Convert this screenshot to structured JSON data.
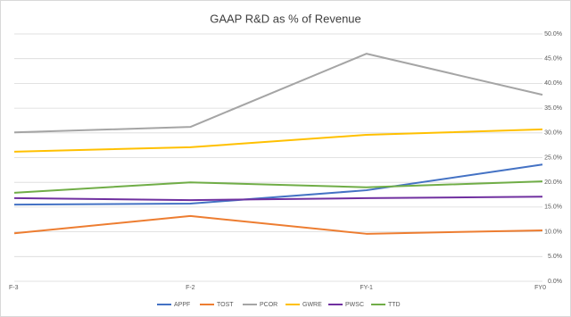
{
  "chart_data": {
    "type": "line",
    "title": "GAAP R&D as % of Revenue",
    "categories": [
      "F-3",
      "F-2",
      "FY-1",
      "FY0"
    ],
    "series": [
      {
        "name": "APPF",
        "color": "#4472c4",
        "values": [
          15.5,
          15.7,
          18.4,
          23.6
        ]
      },
      {
        "name": "TOST",
        "color": "#ed7d31",
        "values": [
          9.7,
          13.2,
          9.6,
          10.3
        ]
      },
      {
        "name": "PCOR",
        "color": "#a5a5a5",
        "values": [
          30.1,
          31.2,
          46.0,
          37.7
        ]
      },
      {
        "name": "GWRE",
        "color": "#ffc000",
        "values": [
          26.2,
          27.1,
          29.6,
          30.7
        ]
      },
      {
        "name": "PWSC",
        "color": "#7030a0",
        "values": [
          16.8,
          16.4,
          16.8,
          17.1
        ]
      },
      {
        "name": "TTD",
        "color": "#70ad47",
        "values": [
          17.9,
          20.0,
          19.0,
          20.2
        ]
      }
    ],
    "ylim": [
      0,
      50
    ],
    "yticks": [
      {
        "value": 0,
        "label": "0.0%"
      },
      {
        "value": 5,
        "label": "5.0%"
      },
      {
        "value": 10,
        "label": "10.0%"
      },
      {
        "value": 15,
        "label": "15.0%"
      },
      {
        "value": 20,
        "label": "20.0%"
      },
      {
        "value": 25,
        "label": "25.0%"
      },
      {
        "value": 30,
        "label": "30.0%"
      },
      {
        "value": 35,
        "label": "35.0%"
      },
      {
        "value": 40,
        "label": "40.0%"
      },
      {
        "value": 45,
        "label": "45.0%"
      },
      {
        "value": 50,
        "label": "50.0%"
      }
    ],
    "grid": true,
    "legend": "bottom"
  }
}
